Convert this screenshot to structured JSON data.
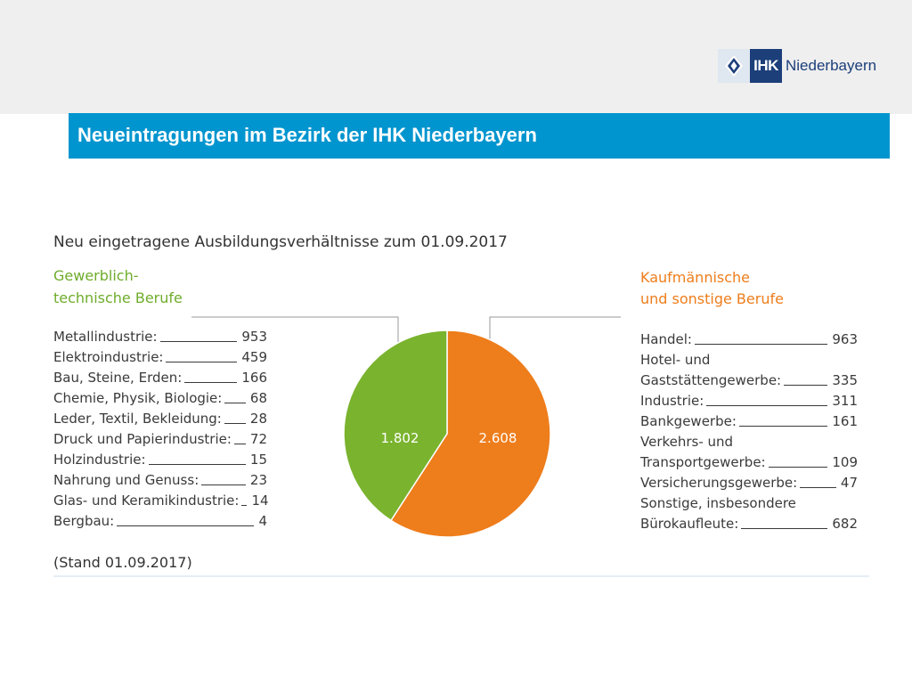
{
  "header": {
    "title": "Neueintragungen im Bezirk der IHK Niederbayern",
    "logo_abbr": "IHK",
    "logo_place": "Niederbayern"
  },
  "colors": {
    "green": "#7ab32e",
    "orange": "#ee7d1b",
    "titlebar": "#0095cf",
    "logo_blue": "#1c3f7a"
  },
  "chart_data": {
    "type": "pie",
    "title": "Neu eingetragene Ausbildungsverhältnisse zum 01.09.2017",
    "slices": [
      {
        "name": "Gewerblich-technische Berufe",
        "value": 1802,
        "label": "1.802",
        "color": "#7ab32e"
      },
      {
        "name": "Kaufmännische und sonstige Berufe",
        "value": 2608,
        "label": "2.608",
        "color": "#ee7d1b"
      }
    ],
    "left_group": {
      "title_lines": [
        "Gewerblich-",
        "technische Berufe"
      ],
      "items": [
        {
          "label": "Metallindustrie:",
          "value": "953"
        },
        {
          "label": "Elektroindustrie:",
          "value": "459"
        },
        {
          "label": "Bau, Steine, Erden:",
          "value": "166"
        },
        {
          "label": "Chemie, Physik, Biologie:",
          "value": "68"
        },
        {
          "label": "Leder, Textil, Bekleidung:",
          "value": "28"
        },
        {
          "label": "Druck und Papierindustrie:",
          "value": "72"
        },
        {
          "label": "Holzindustrie:",
          "value": "15"
        },
        {
          "label": "Nahrung und Genuss:",
          "value": "23"
        },
        {
          "label": "Glas- und Keramikindustrie:",
          "value": "14"
        },
        {
          "label": "Bergbau:",
          "value": "4"
        }
      ]
    },
    "right_group": {
      "title_lines": [
        "Kaufmännische",
        "und sonstige Berufe"
      ],
      "items": [
        {
          "label": "Handel:",
          "value": "963"
        },
        {
          "label": "Hotel- und",
          "value": ""
        },
        {
          "label": "Gaststättengewerbe:",
          "value": "335"
        },
        {
          "label": "Industrie:",
          "value": "311"
        },
        {
          "label": "Bankgewerbe:",
          "value": "161"
        },
        {
          "label": "Verkehrs- und",
          "value": ""
        },
        {
          "label": "Transportgewerbe:",
          "value": "109"
        },
        {
          "label": "Versicherungsgewerbe:",
          "value": "47"
        },
        {
          "label": "Sonstige, insbesondere",
          "value": ""
        },
        {
          "label": "Bürokaufleute:",
          "value": "682"
        }
      ]
    },
    "note": "(Stand 01.09.2017)"
  }
}
